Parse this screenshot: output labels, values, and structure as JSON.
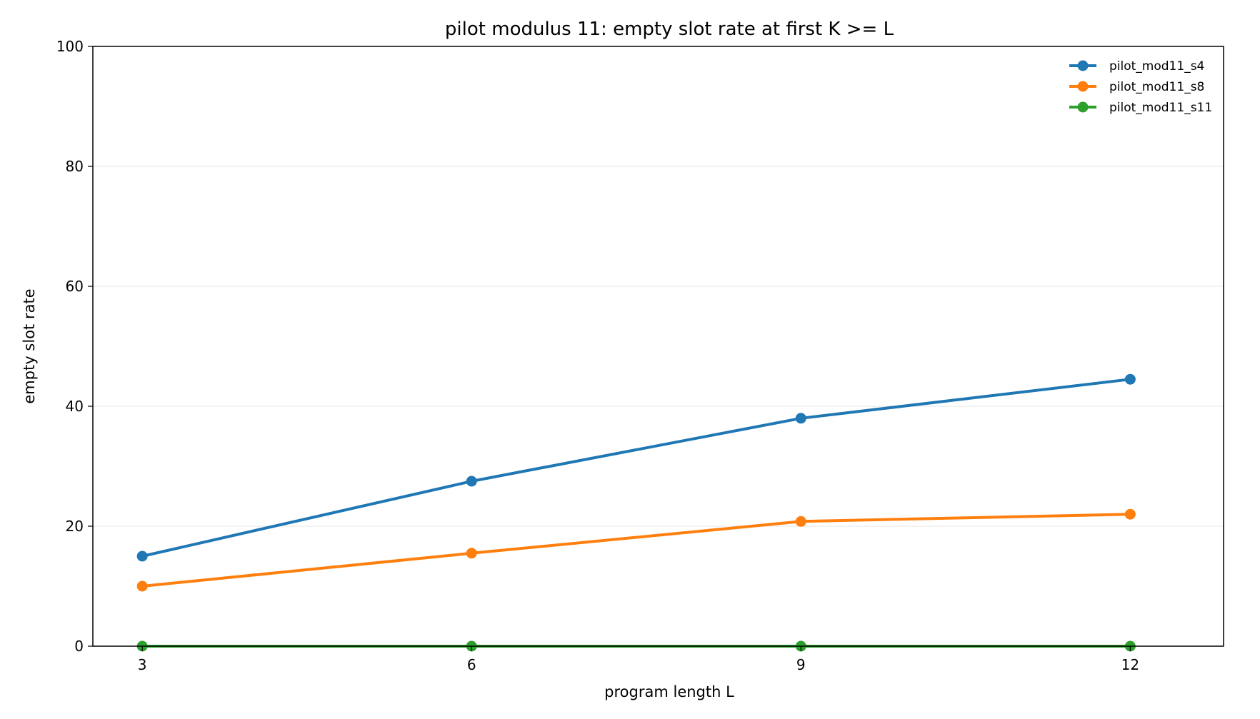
{
  "chart_data": {
    "type": "line",
    "title": "pilot modulus 11: empty slot rate at first K >= L",
    "xlabel": "program length L",
    "ylabel": "empty slot rate",
    "x": [
      3,
      6,
      9,
      12
    ],
    "xticks": [
      "3",
      "6",
      "9",
      "12"
    ],
    "yticks": [
      "0",
      "20",
      "40",
      "60",
      "80",
      "100"
    ],
    "ylim": [
      0,
      100
    ],
    "grid": "horizontal",
    "legend_position": "top-right",
    "series": [
      {
        "name": "pilot_mod11_s4",
        "color": "#1f77b4",
        "values": [
          15.0,
          27.5,
          38.0,
          44.5
        ]
      },
      {
        "name": "pilot_mod11_s8",
        "color": "#ff7f0e",
        "values": [
          10.0,
          15.5,
          20.8,
          22.0
        ]
      },
      {
        "name": "pilot_mod11_s11",
        "color": "#2ca02c",
        "values": [
          0.0,
          0.0,
          0.0,
          0.0
        ]
      }
    ]
  }
}
